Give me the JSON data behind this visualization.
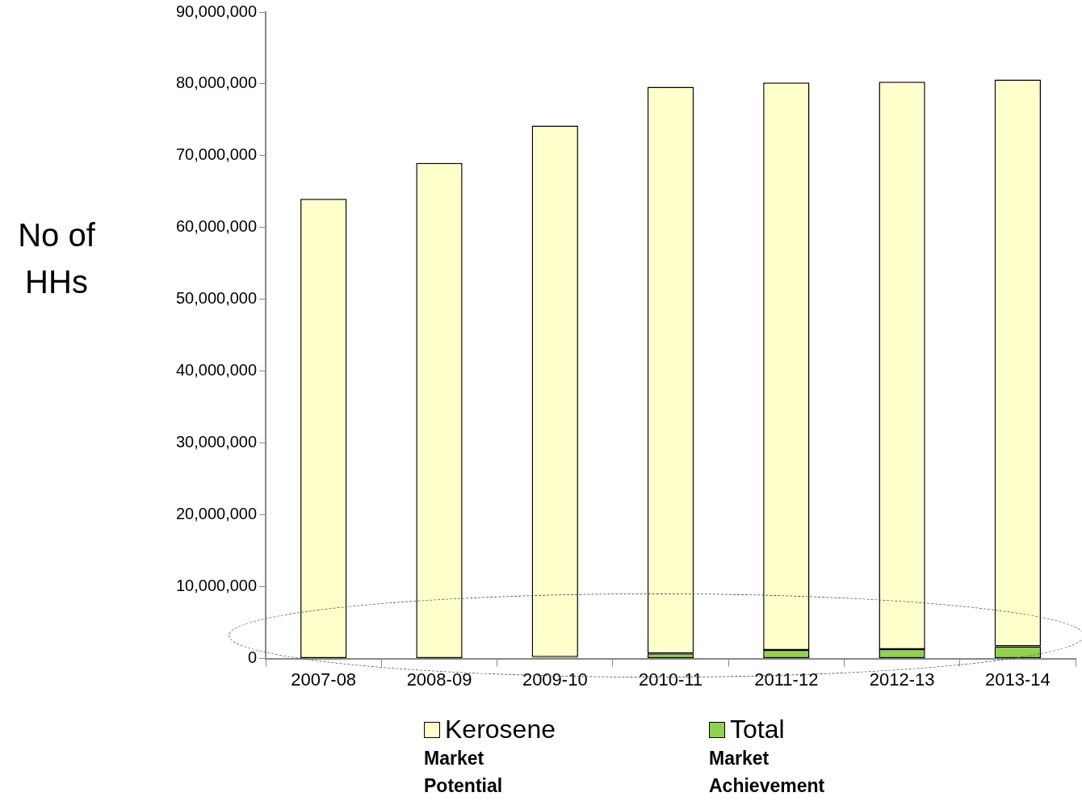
{
  "chart_data": {
    "type": "bar",
    "stacked": true,
    "ylabel": "No of HHs",
    "categories": [
      "2007-08",
      "2008-09",
      "2009-10",
      "2010-11",
      "2011-12",
      "2012-13",
      "2013-14"
    ],
    "series": [
      {
        "name": "Total",
        "color": "#92d050",
        "values": [
          0,
          0,
          200000,
          700000,
          1200000,
          1300000,
          1700000
        ]
      },
      {
        "name": "Kerosene",
        "color": "#ffffcc",
        "values": [
          64000000,
          69000000,
          74000000,
          78900000,
          79000000,
          79000000,
          78900000
        ]
      }
    ],
    "ylim": [
      0,
      90000000
    ],
    "yticks": [
      {
        "value": 0,
        "label": "0"
      },
      {
        "value": 10000000,
        "label": "10,000,000"
      },
      {
        "value": 20000000,
        "label": "20,000,000"
      },
      {
        "value": 30000000,
        "label": "30,000,000"
      },
      {
        "value": 40000000,
        "label": "40,000,000"
      },
      {
        "value": 50000000,
        "label": "50,000,000"
      },
      {
        "value": 60000000,
        "label": "60,000,000"
      },
      {
        "value": 70000000,
        "label": "70,000,000"
      },
      {
        "value": 80000000,
        "label": "80,000,000"
      },
      {
        "value": 90000000,
        "label": "90,000,000"
      }
    ],
    "grid": false,
    "legend": "bottom",
    "annotations": [
      "Market Achievement",
      "Market Potential"
    ]
  }
}
